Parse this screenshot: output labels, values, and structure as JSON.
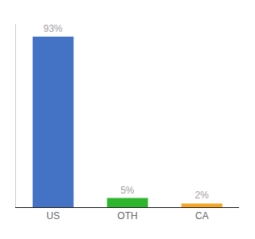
{
  "chart_data": {
    "type": "bar",
    "categories": [
      "US",
      "OTH",
      "CA"
    ],
    "values": [
      93,
      5,
      2
    ],
    "value_labels": [
      "93%",
      "5%",
      "2%"
    ],
    "colors": [
      "#4472c4",
      "#2db52d",
      "#f5a623"
    ],
    "ylim": [
      0,
      100
    ],
    "grid": false,
    "data_labels": true,
    "tick_labels": "x"
  }
}
